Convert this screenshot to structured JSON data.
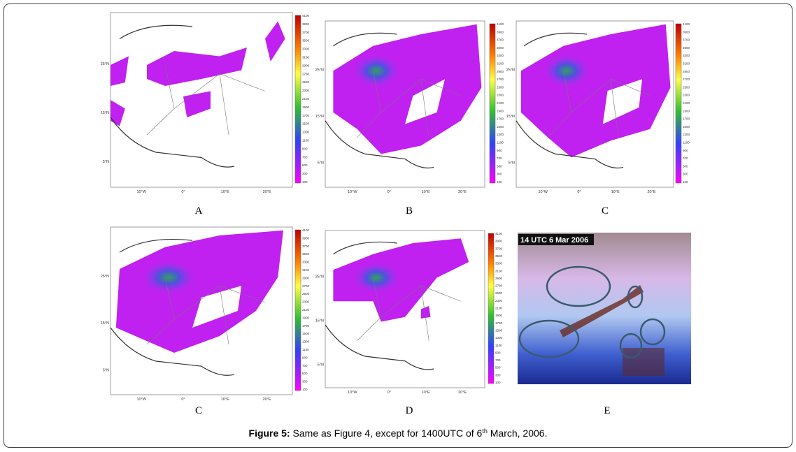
{
  "panels": [
    {
      "label": "A"
    },
    {
      "label": "B"
    },
    {
      "label": "C"
    },
    {
      "label": "C"
    },
    {
      "label": "D"
    },
    {
      "label": "E",
      "overlay": "14 UTC 6 Mar 2006"
    }
  ],
  "axis_labels": {
    "lat": [
      "25°N",
      "15°N",
      "5°N"
    ],
    "lon": [
      "10°W",
      "0°",
      "10°E",
      "20°E"
    ]
  },
  "colorbar_labels": [
    "4100",
    "3900",
    "3700",
    "3500",
    "3300",
    "3100",
    "2900",
    "2700",
    "2500",
    "2300",
    "2100",
    "1900",
    "1700",
    "1500",
    "1300",
    "1100",
    "900",
    "700",
    "500",
    "300",
    "100"
  ],
  "caption": {
    "bold": "Figure 5:",
    "text": " Same as Figure 4, except for 1400UTC of 6",
    "sup": "th",
    "rest": " March, 2006."
  }
}
